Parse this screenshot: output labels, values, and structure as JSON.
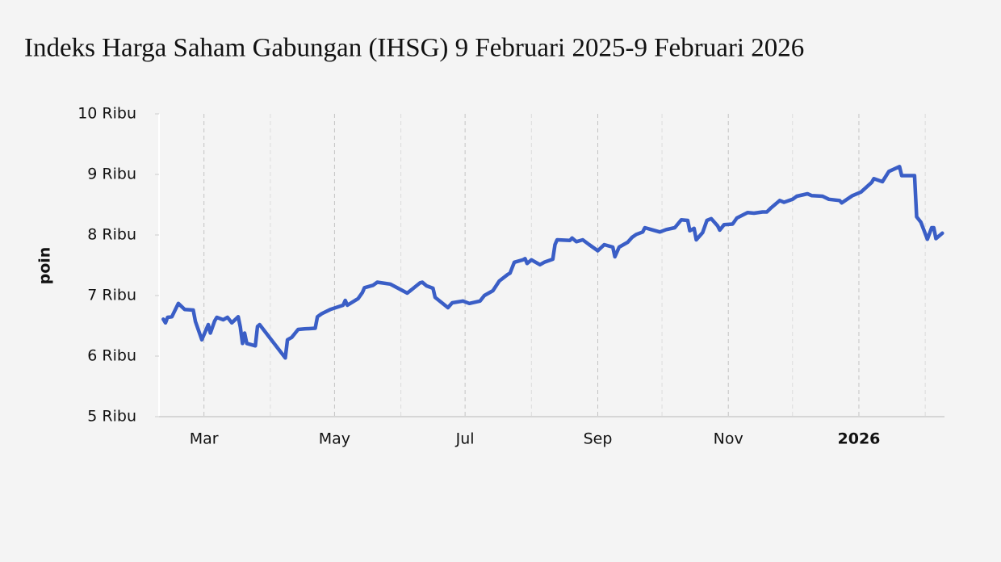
{
  "chart_data": {
    "type": "line",
    "title": "Indeks Harga Saham Gabungan (IHSG) 9 Februari 2025-9 Februari 2026",
    "y_label": "poin",
    "color": "#3a5ec6",
    "x": [
      "2025-02-10",
      "2025-02-11",
      "2025-02-12",
      "2025-02-14",
      "2025-02-17",
      "2025-02-20",
      "2025-02-24",
      "2025-02-25",
      "2025-02-28",
      "2025-03-03",
      "2025-03-04",
      "2025-03-06",
      "2025-03-07",
      "2025-03-10",
      "2025-03-12",
      "2025-03-14",
      "2025-03-17",
      "2025-03-18",
      "2025-03-19",
      "2025-03-20",
      "2025-03-21",
      "2025-03-25",
      "2025-03-26",
      "2025-03-27",
      "2025-04-08",
      "2025-04-09",
      "2025-04-11",
      "2025-04-14",
      "2025-04-17",
      "2025-04-22",
      "2025-04-23",
      "2025-04-25",
      "2025-04-29",
      "2025-05-05",
      "2025-05-06",
      "2025-05-07",
      "2025-05-12",
      "2025-05-14",
      "2025-05-15",
      "2025-05-19",
      "2025-05-21",
      "2025-05-27",
      "2025-06-04",
      "2025-06-10",
      "2025-06-11",
      "2025-06-13",
      "2025-06-16",
      "2025-06-17",
      "2025-06-23",
      "2025-06-25",
      "2025-06-30",
      "2025-07-03",
      "2025-07-08",
      "2025-07-10",
      "2025-07-14",
      "2025-07-17",
      "2025-07-21",
      "2025-07-22",
      "2025-07-24",
      "2025-07-28",
      "2025-07-29",
      "2025-07-30",
      "2025-08-01",
      "2025-08-05",
      "2025-08-07",
      "2025-08-11",
      "2025-08-12",
      "2025-08-13",
      "2025-08-19",
      "2025-08-20",
      "2025-08-22",
      "2025-08-25",
      "2025-08-28",
      "2025-09-01",
      "2025-09-04",
      "2025-09-08",
      "2025-09-09",
      "2025-09-11",
      "2025-09-15",
      "2025-09-17",
      "2025-09-19",
      "2025-09-22",
      "2025-09-23",
      "2025-09-26",
      "2025-09-30",
      "2025-10-03",
      "2025-10-07",
      "2025-10-10",
      "2025-10-13",
      "2025-10-14",
      "2025-10-16",
      "2025-10-17",
      "2025-10-20",
      "2025-10-22",
      "2025-10-24",
      "2025-10-27",
      "2025-10-28",
      "2025-10-30",
      "2025-11-03",
      "2025-11-05",
      "2025-11-10",
      "2025-11-13",
      "2025-11-17",
      "2025-11-19",
      "2025-11-21",
      "2025-11-25",
      "2025-11-27",
      "2025-12-01",
      "2025-12-03",
      "2025-12-08",
      "2025-12-10",
      "2025-12-15",
      "2025-12-18",
      "2025-12-23",
      "2025-12-24",
      "2025-12-29",
      "2026-01-02",
      "2026-01-07",
      "2026-01-08",
      "2026-01-12",
      "2026-01-15",
      "2026-01-20",
      "2026-01-21",
      "2026-01-27",
      "2026-01-28",
      "2026-01-30",
      "2026-02-02",
      "2026-02-04",
      "2026-02-05",
      "2026-02-06",
      "2026-02-09"
    ],
    "values": [
      6610,
      6550,
      6640,
      6650,
      6870,
      6770,
      6760,
      6570,
      6270,
      6520,
      6380,
      6580,
      6640,
      6600,
      6640,
      6550,
      6650,
      6480,
      6210,
      6380,
      6210,
      6170,
      6490,
      6520,
      5970,
      6270,
      6310,
      6440,
      6450,
      6460,
      6650,
      6700,
      6770,
      6840,
      6920,
      6840,
      6950,
      7050,
      7130,
      7170,
      7220,
      7190,
      7040,
      7210,
      7220,
      7160,
      7120,
      6970,
      6800,
      6880,
      6910,
      6870,
      6910,
      7000,
      7080,
      7240,
      7350,
      7370,
      7550,
      7590,
      7610,
      7530,
      7590,
      7510,
      7550,
      7600,
      7840,
      7920,
      7910,
      7950,
      7890,
      7920,
      7840,
      7740,
      7840,
      7800,
      7640,
      7800,
      7880,
      7960,
      8010,
      8050,
      8120,
      8090,
      8050,
      8090,
      8120,
      8250,
      8240,
      8070,
      8110,
      7920,
      8040,
      8240,
      8270,
      8150,
      8080,
      8170,
      8180,
      8280,
      8370,
      8360,
      8380,
      8380,
      8450,
      8570,
      8540,
      8590,
      8640,
      8680,
      8650,
      8640,
      8590,
      8570,
      8530,
      8650,
      8710,
      8870,
      8930,
      8880,
      9050,
      9130,
      8980,
      8980,
      8300,
      8210,
      7930,
      8120,
      8120,
      7940,
      8030
    ],
    "xlim": [
      "2025-02-08",
      "2026-02-10"
    ],
    "xticks": [
      {
        "value": "2025-03-01",
        "label": "Mar"
      },
      {
        "value": "2025-05-01",
        "label": "May"
      },
      {
        "value": "2025-07-01",
        "label": "Jul"
      },
      {
        "value": "2025-09-01",
        "label": "Sep"
      },
      {
        "value": "2025-11-01",
        "label": "Nov"
      },
      {
        "value": "2026-01-01",
        "label": "2026",
        "bold": true
      }
    ],
    "xticks_minor": [
      "2025-04-01",
      "2025-06-01",
      "2025-08-01",
      "2025-10-01",
      "2025-12-01",
      "2026-02-01"
    ],
    "ylim": [
      5000,
      10000
    ],
    "yticks": [
      {
        "value": 5000,
        "label": "5 Ribu"
      },
      {
        "value": 6000,
        "label": "6 Ribu"
      },
      {
        "value": 7000,
        "label": "7 Ribu"
      },
      {
        "value": 8000,
        "label": "8 Ribu"
      },
      {
        "value": 9000,
        "label": "9 Ribu"
      },
      {
        "value": 10000,
        "label": "10 Ribu"
      }
    ],
    "grid": true
  }
}
